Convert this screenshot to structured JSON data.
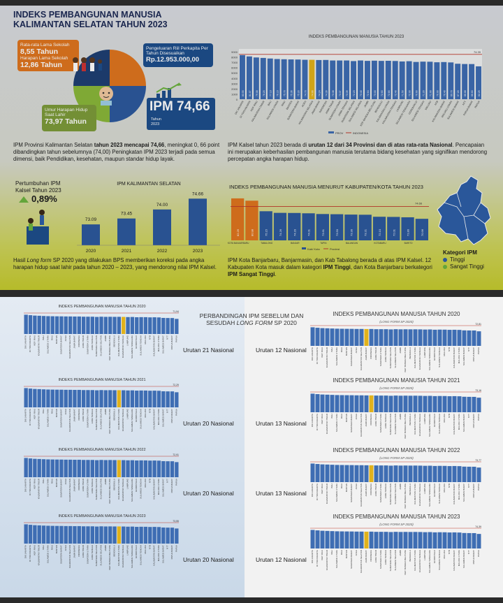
{
  "header": {
    "title_line1": "INDEKS PEMBANGUNAN MANUSIA",
    "title_line2": "KALIMANTAN SELATAN TAHUN 2023"
  },
  "indicators": {
    "rls_label": "Rata-rata Lama Sekolah",
    "rls_value": "8,55 Tahun",
    "hls_label": "Harapan Lama Sekolah",
    "hls_value": "12,86 Tahun",
    "uhh_label": "Umur Harapan Hidup Saat Lahir",
    "uhh_value": "73,97 Tahun",
    "ppp_label": "Pengeluaran Riil Perkapita Per Tahun Disesuaikan",
    "ppp_value": "Rp.12.953.000,00",
    "ipm_value": "IPM 74,66",
    "ipm_sub1": "Tahun",
    "ipm_sub2": "2023"
  },
  "paragraphs": {
    "p1_a": "IPM Provinsi Kalimantan Selatan ",
    "p1_b": "tahun 2023 mencapai 74,66",
    "p1_c": ", meningkat 0, 66 point dibandingkan tahun sebelumnya (74,00) Peningkatan IPM 2023 terjadi pada semua dimensi, baik Pendidikan, kesehatan, maupun standar hidup layak.",
    "p2_a": "IPM Kalsel tahun 2023 berada di ",
    "p2_b": "urutan 12 dari 34 Provinsi dan di atas rata-rata Nasional",
    "p2_c": ". Pencapaian ini merupakan keberhasilan pembangunan manusia terutama bidang kesehatan yang signifikan mendorong percepatan angka harapan hidup.",
    "p3_a": "Hasil ",
    "p3_b": "Long form",
    "p3_c": " SP 2020 yang dilakukan BPS memberikan koreksi pada angka harapan hidup saat lahir pada tahun 2020 – 2023, yang mendorong nilai IPM Kalsel.",
    "p4_a": "IPM Kota Banjarbaru, Banjarmasin, dan Kab Tabalong berada di atas IPM Kalsel. 12 Kabupaten Kota masuk dalam kategori ",
    "p4_b": "IPM Tinggi",
    "p4_c": ", dan Kota Banjarbaru berkategori ",
    "p4_d": "IPM Sangat Tinggi",
    "p4_e": "."
  },
  "growth": {
    "label1": "Pertumbuhan IPM",
    "label2": "Kalsel Tahun 2023",
    "value": "0,89%"
  },
  "legend_kategori": {
    "title": "Kategori IPM",
    "tinggi": "Tinggi",
    "sangat_tinggi": "Sangat Tinggi",
    "tinggi_color": "#2e5fa8",
    "sangat_tinggi_color": "#6db33f"
  },
  "comparison": {
    "title_line1": "PERBANDINGAN IPM SEBELUM DAN",
    "title_line2a": "SESUDAH ",
    "title_line2b": "LONG FORM",
    "title_line2c": " SP 2020",
    "left_titles": [
      "INDEKS PEMBANGUNAN MANUSIA TAHUN 2020",
      "INDEKS PEMBANGUNAN MANUSIA TAHUN 2021",
      "INDEKS PEMBANGUNAN MANUSIA TAHUN 2022",
      "INDEKS PEMBANGUNAN MANUSIA TAHUN 2023"
    ],
    "right_titles": [
      "INDEKS PEMBANGUNAN MANUSIA TAHUN 2020",
      "INDEKS PEMBANGUNAN MANUSIA TAHUN 2021",
      "INDEKS PEMBANGUNAN MANUSIA TAHUN 2022",
      "INDEKS PEMBANGUNAN MANUSIA TAHUN 2023"
    ],
    "right_sub": "(LONG FORM SP 2020)",
    "left_ranks": [
      "Urutan 21 Nasional",
      "Urutan 20 Nasional",
      "Urutan 20 Nasional",
      "Urutan 20 Nasional"
    ],
    "right_ranks": [
      "Urutan 12 Nasional",
      "Urutan 13 Nasional",
      "Urutan 13 Nasional",
      "Urutan 12 Nasional"
    ],
    "left_refs": [
      "71,94",
      "72,29",
      "72,91",
      "73,55"
    ],
    "right_refs": [
      "72,81",
      "73,16",
      "73,77",
      "74,39"
    ]
  },
  "chart_data": [
    {
      "type": "pie",
      "title": "",
      "values": [
        25,
        25,
        25,
        25
      ],
      "colors": [
        "#e0761f",
        "#2d5a9e",
        "#8ab83a",
        "#1f3f73"
      ]
    },
    {
      "type": "bar",
      "title": "INDEKS PEMBANGUNAN MANUSIA TAHUN 2023",
      "categories": [
        "DKI JAKARTA",
        "DI YOGYAKARTA",
        "KEP. RIAU",
        "KALIMANTAN TIMUR",
        "BALI",
        "SULAWESI UTARA",
        "RIAU",
        "BANTEN",
        "SUMATERA BARAT",
        "ACEH",
        "KALIMANTAN SELATAN",
        "JAWA BARAT",
        "INDONESIA",
        "JAWA TIMUR",
        "SUMATERA UTARA",
        "JAWA TENGAH",
        "SUMATERA SELATAN",
        "SULAWESI SELATAN",
        "JAMBI",
        "KEP. BANGKA BELITUNG",
        "BENGKULU",
        "KALIMANTAN UTARA",
        "KALIMANTAN TENGAH",
        "LAMPUNG",
        "SULAWESI TENGGARA",
        "GORONTALO",
        "SULAWESI TENGAH",
        "MALUKU",
        "NTB",
        "KALIMANTAN BARAT",
        "MALUKU UTARA",
        "SULAWESI BARAT",
        "NTT",
        "PAPUA BARAT",
        "PAPUA"
      ],
      "values": [
        83.55,
        81.07,
        79.08,
        78.2,
        77.1,
        76.16,
        75.7,
        75.36,
        75.2,
        74.7,
        74.66,
        74.24,
        74.39,
        73.38,
        73.37,
        73.39,
        72.23,
        73.4,
        72.64,
        73.0,
        72.6,
        72.8,
        72.4,
        71.5,
        72.0,
        70.6,
        71.2,
        71.0,
        70.0,
        70.4,
        69.7,
        67.2,
        66.68,
        66.6,
        62.25
      ],
      "highlight": "KALIMANTAN SELATAN",
      "reference_line": 74.39,
      "reference_label": "74.39",
      "ylim": [
        0,
        9000
      ],
      "yticks": [
        "0",
        "1000",
        "2000",
        "3000",
        "4000",
        "5000",
        "6000",
        "7000",
        "8000",
        "9000"
      ],
      "legend": [
        "PROV",
        "INDONESIA"
      ]
    },
    {
      "type": "bar",
      "title": "IPM KALIMANTAN SELATAN",
      "categories": [
        "2020",
        "2021",
        "2022",
        "2023"
      ],
      "values": [
        73.09,
        73.45,
        74.0,
        74.66
      ],
      "labels": [
        "73.09",
        "73.45",
        "74.00",
        "74.66"
      ]
    },
    {
      "type": "bar",
      "title": "INDEKS PEMBANGUNAN MANUSIA MENURUT KABUPATEN/KOTA TAHUN 2023",
      "categories": [
        "KOTA BANJARBARU",
        "BANJARMASIN",
        "TABALONG",
        "HULU SUNGAI TENGAH",
        "BANJAR",
        "TANAH BUMBU",
        "TAPIN",
        "HULU SUNGAI SELATAN",
        "BALANGAN",
        "BARITO KUALA",
        "KOTABARU",
        "TANAH LAUT",
        "BARITO",
        "HULU SUNGAI UTARA"
      ],
      "values": [
        82.26,
        80.98,
        75.15,
        74.26,
        74.2,
        74.01,
        73.61,
        73.5,
        73.3,
        73.21,
        72.1,
        72.01,
        71.8,
        70.96
      ],
      "reference_line": 74.66,
      "reference_label": "74.66",
      "legend": [
        "Kab/ Kota",
        "Provinsi"
      ]
    }
  ]
}
